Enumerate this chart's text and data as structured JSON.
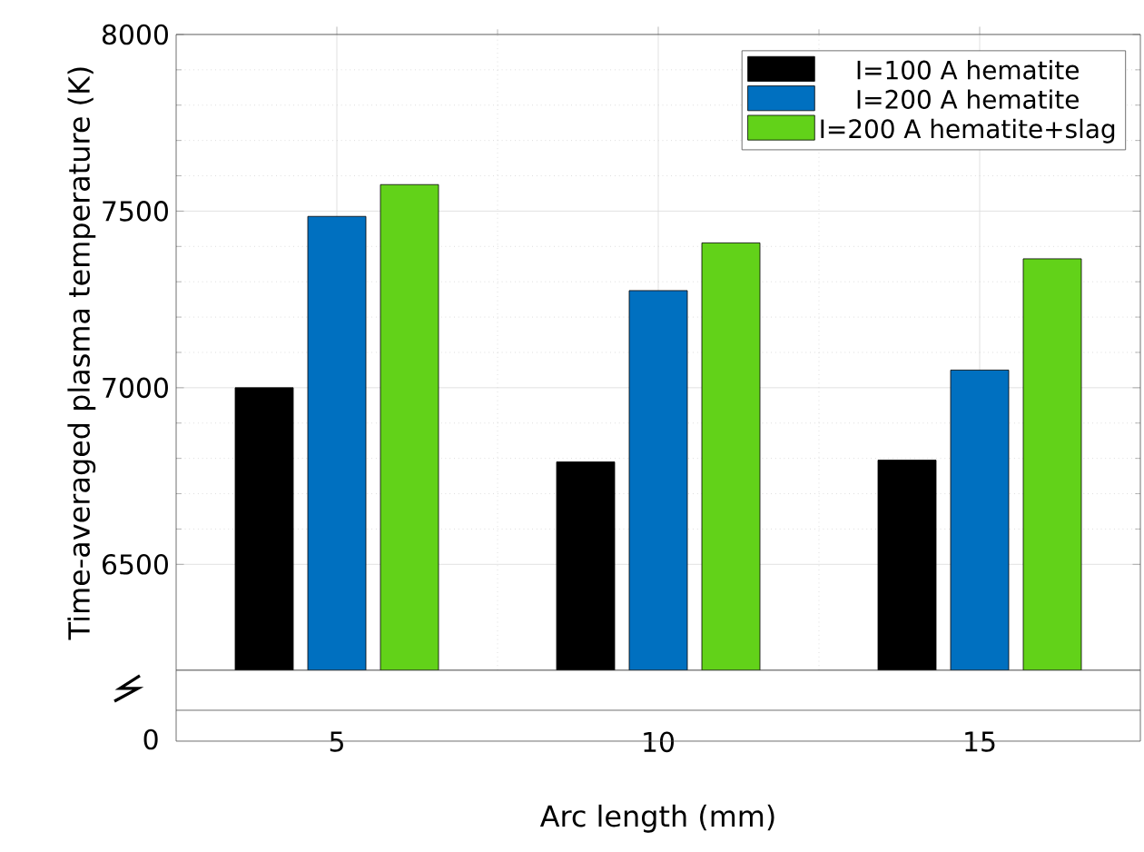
{
  "chart_data": {
    "type": "bar",
    "categories": [
      "5",
      "10",
      "15"
    ],
    "series": [
      {
        "name": "I=100 A hematite",
        "color": "#000000",
        "values": [
          7000,
          6790,
          6795
        ]
      },
      {
        "name": "I=200 A hematite",
        "color": "#0070c0",
        "values": [
          7485,
          7275,
          7050
        ]
      },
      {
        "name": "I=200 A hematite+slag",
        "color": "#62d219",
        "values": [
          7575,
          7410,
          7365
        ]
      }
    ],
    "xlabel": "Arc length (mm)",
    "ylabel": "Time-averaged plasma temperature (K)",
    "ylim": [
      6200,
      8000
    ],
    "yticks": [
      6500,
      7000,
      7500,
      8000
    ],
    "grid": true,
    "legend": "top right",
    "annotations": [
      "0"
    ]
  }
}
